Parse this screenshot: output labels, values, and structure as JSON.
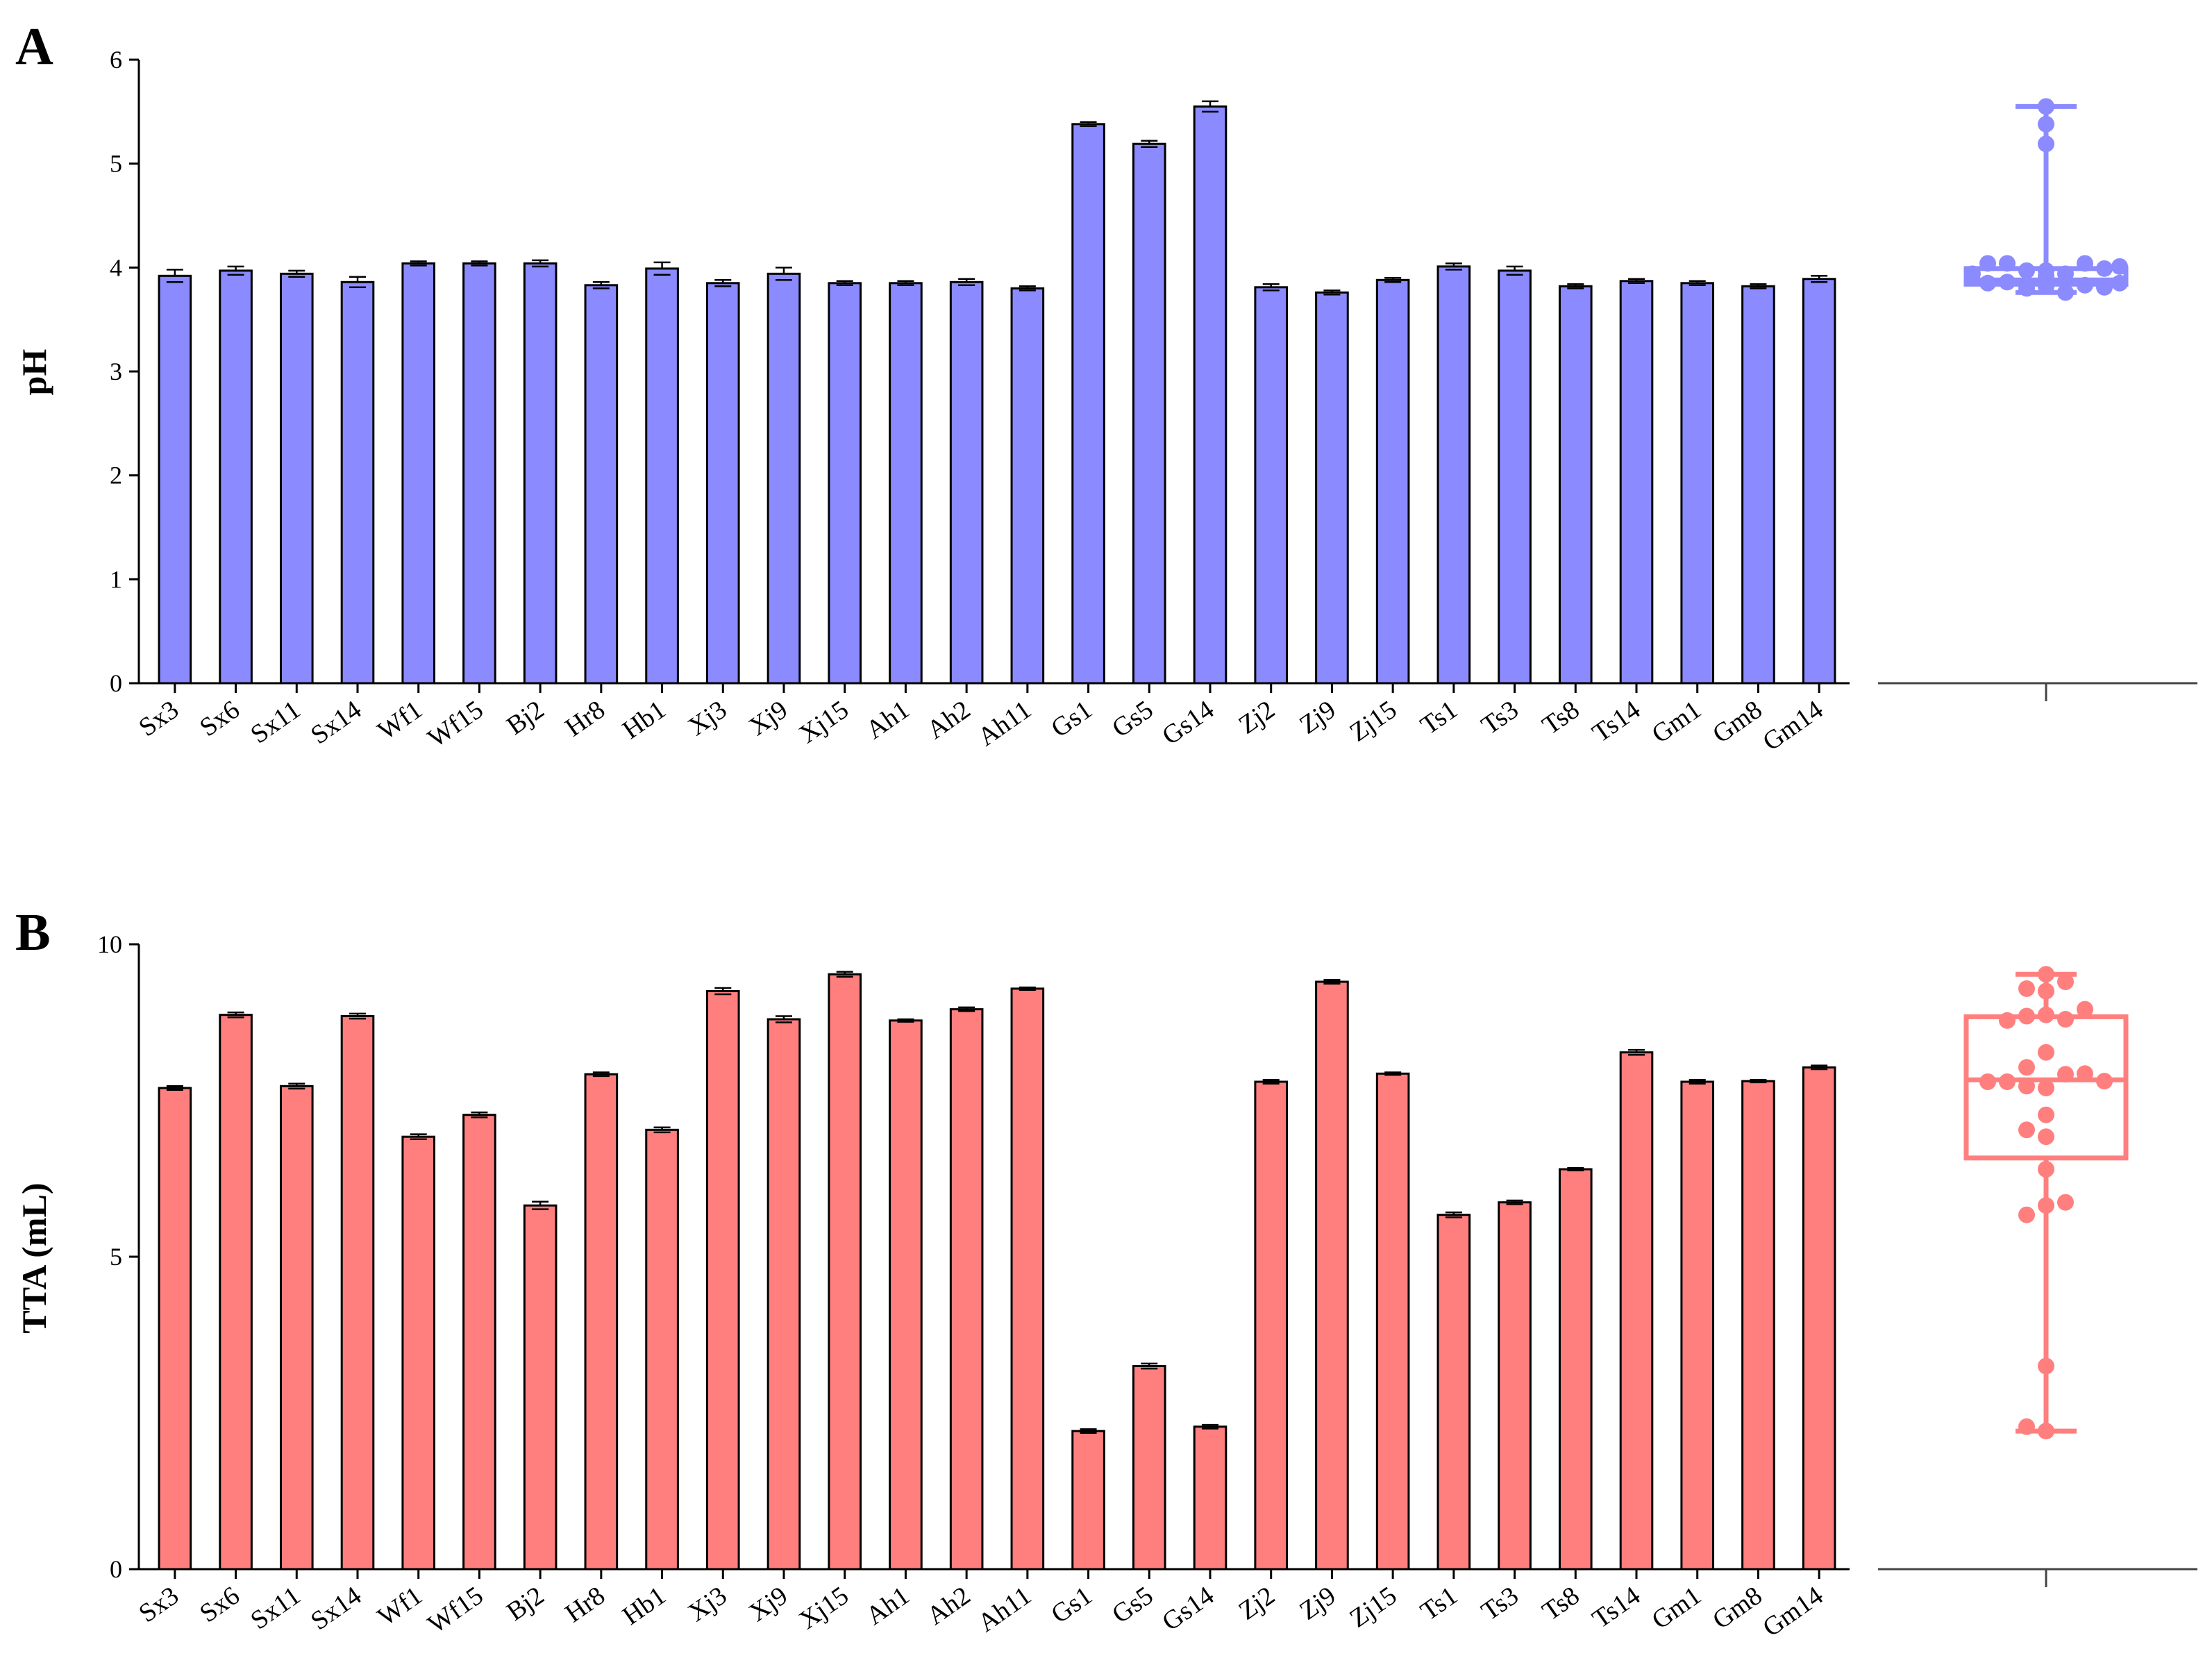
{
  "chart_data": [
    {
      "panel_label": "A",
      "type": "bar",
      "ylabel": "pH",
      "ylim": [
        0,
        6
      ],
      "yticks": [
        "0",
        "1",
        "2",
        "3",
        "4",
        "5",
        "6"
      ],
      "bar_color": "#8b8bff",
      "categories": [
        "Sx3",
        "Sx6",
        "Sx11",
        "Sx14",
        "Wf1",
        "Wf15",
        "Bj2",
        "Hr8",
        "Hb1",
        "Xj3",
        "Xj9",
        "Xj15",
        "Ah1",
        "Ah2",
        "Ah11",
        "Gs1",
        "Gs5",
        "Gs14",
        "Zj2",
        "Zj9",
        "Zj15",
        "Ts1",
        "Ts3",
        "Ts8",
        "Ts14",
        "Gm1",
        "Gm8",
        "Gm14"
      ],
      "values": [
        3.92,
        3.97,
        3.94,
        3.86,
        4.04,
        4.04,
        4.04,
        3.83,
        3.99,
        3.85,
        3.94,
        3.85,
        3.85,
        3.86,
        3.8,
        5.38,
        5.19,
        5.55,
        3.81,
        3.76,
        3.88,
        4.01,
        3.97,
        3.82,
        3.87,
        3.85,
        3.82,
        3.89
      ],
      "errors": [
        0.06,
        0.04,
        0.03,
        0.05,
        0.02,
        0.02,
        0.03,
        0.03,
        0.06,
        0.03,
        0.06,
        0.02,
        0.02,
        0.03,
        0.02,
        0.02,
        0.03,
        0.05,
        0.03,
        0.02,
        0.02,
        0.03,
        0.04,
        0.02,
        0.02,
        0.02,
        0.02,
        0.03
      ],
      "boxplot": {
        "color": "#8b8bff",
        "min": 3.76,
        "q1": 3.84,
        "median": 3.88,
        "q3": 3.99,
        "max": 5.55,
        "points": [
          3.92,
          3.97,
          3.94,
          3.86,
          4.04,
          4.04,
          4.04,
          3.83,
          3.99,
          3.85,
          3.94,
          3.85,
          3.85,
          3.86,
          3.8,
          5.38,
          5.19,
          5.55,
          3.81,
          3.76,
          3.88,
          4.01,
          3.97,
          3.82,
          3.87,
          3.85,
          3.82,
          3.89
        ]
      }
    },
    {
      "panel_label": "B",
      "type": "bar",
      "ylabel": "TTA (mL)",
      "ylim": [
        0,
        10
      ],
      "yticks": [
        "0",
        "5",
        "10"
      ],
      "bar_color": "#ff7f7f",
      "categories": [
        "Sx3",
        "Sx6",
        "Sx11",
        "Sx14",
        "Wf1",
        "Wf15",
        "Bj2",
        "Hr8",
        "Hb1",
        "Xj3",
        "Xj9",
        "Xj15",
        "Ah1",
        "Ah2",
        "Ah11",
        "Gs1",
        "Gs5",
        "Gs14",
        "Zj2",
        "Zj9",
        "Zj15",
        "Ts1",
        "Ts3",
        "Ts8",
        "Ts14",
        "Gm1",
        "Gm8",
        "Gm14"
      ],
      "values": [
        7.7,
        8.87,
        7.73,
        8.85,
        6.92,
        7.27,
        5.82,
        7.92,
        7.03,
        9.25,
        8.8,
        9.52,
        8.78,
        8.96,
        9.29,
        2.21,
        3.25,
        2.28,
        7.8,
        9.4,
        7.93,
        5.67,
        5.87,
        6.4,
        8.27,
        7.8,
        7.81,
        8.03
      ],
      "errors": [
        0.03,
        0.04,
        0.04,
        0.04,
        0.04,
        0.04,
        0.06,
        0.03,
        0.04,
        0.05,
        0.05,
        0.04,
        0.02,
        0.03,
        0.02,
        0.03,
        0.04,
        0.03,
        0.03,
        0.03,
        0.02,
        0.04,
        0.03,
        0.02,
        0.04,
        0.03,
        0.02,
        0.03
      ],
      "boxplot": {
        "color": "#ff7f7f",
        "min": 2.21,
        "q1": 6.58,
        "median": 7.83,
        "q3": 8.84,
        "max": 9.52,
        "points": [
          7.7,
          8.87,
          7.73,
          8.85,
          6.92,
          7.27,
          5.82,
          7.92,
          7.03,
          9.25,
          8.8,
          9.52,
          8.78,
          8.96,
          9.29,
          2.21,
          3.25,
          2.28,
          7.8,
          9.4,
          7.93,
          5.67,
          5.87,
          6.4,
          8.27,
          7.8,
          7.81,
          8.03
        ]
      }
    }
  ]
}
